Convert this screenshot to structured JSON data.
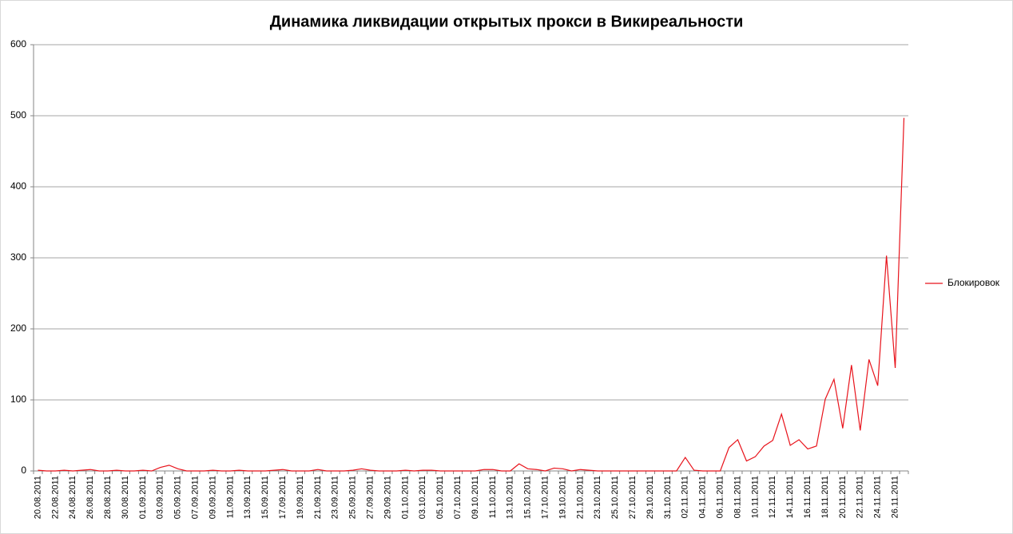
{
  "chart_data": {
    "type": "line",
    "title": "Динамика ликвидации открытых прокси в Викиреальности",
    "categories": [
      "20.08.2011",
      null,
      "22.08.2011",
      null,
      "24.08.2011",
      null,
      "26.08.2011",
      null,
      "28.08.2011",
      null,
      "30.08.2011",
      null,
      "01.09.2011",
      null,
      "03.09.2011",
      null,
      "05.09.2011",
      null,
      "07.09.2011",
      null,
      "09.09.2011",
      null,
      "11.09.2011",
      null,
      "13.09.2011",
      null,
      "15.09.2011",
      null,
      "17.09.2011",
      null,
      "19.09.2011",
      null,
      "21.09.2011",
      null,
      "23.09.2011",
      null,
      "25.09.2011",
      null,
      "27.09.2011",
      null,
      "29.09.2011",
      null,
      "01.10.2011",
      null,
      "03.10.2011",
      null,
      "05.10.2011",
      null,
      "07.10.2011",
      null,
      "09.10.2011",
      null,
      "11.10.2011",
      null,
      "13.10.2011",
      null,
      "15.10.2011",
      null,
      "17.10.2011",
      null,
      "19.10.2011",
      null,
      "21.10.2011",
      null,
      "23.10.2011",
      null,
      "25.10.2011",
      null,
      "27.10.2011",
      null,
      "29.10.2011",
      null,
      "31.10.2011",
      null,
      "02.11.2011",
      null,
      "04.11.2011",
      null,
      "06.11.2011",
      null,
      "08.11.2011",
      null,
      "10.11.2011",
      null,
      "12.11.2011",
      null,
      "14.11.2011",
      null,
      "16.11.2011",
      null,
      "18.11.2011",
      null,
      "20.11.2011",
      null,
      "22.11.2011",
      null,
      "24.11.2011",
      null,
      "26.11.2011",
      null
    ],
    "series": [
      {
        "name": "Блокировок",
        "color": "#e8131b",
        "values": [
          1,
          0,
          0,
          1,
          0,
          1,
          2,
          0,
          0,
          1,
          0,
          0,
          1,
          0,
          5,
          8,
          3,
          0,
          0,
          0,
          1,
          0,
          0,
          1,
          0,
          0,
          0,
          1,
          2,
          0,
          0,
          0,
          2,
          0,
          0,
          0,
          1,
          3,
          1,
          0,
          0,
          0,
          1,
          0,
          1,
          1,
          0,
          0,
          0,
          0,
          0,
          2,
          2,
          0,
          0,
          10,
          3,
          2,
          0,
          4,
          3,
          0,
          2,
          1,
          0,
          0,
          0,
          0,
          0,
          0,
          0,
          0,
          0,
          0,
          19,
          1,
          0,
          0,
          0,
          33,
          44,
          14,
          20,
          35,
          43,
          80,
          36,
          44,
          31,
          35,
          101,
          129,
          60,
          149,
          57,
          157,
          120,
          303,
          145,
          497
        ]
      }
    ],
    "ylim": [
      0,
      600
    ],
    "yticks": [
      0,
      100,
      200,
      300,
      400,
      500,
      600
    ],
    "grid": true,
    "legend": "right"
  }
}
